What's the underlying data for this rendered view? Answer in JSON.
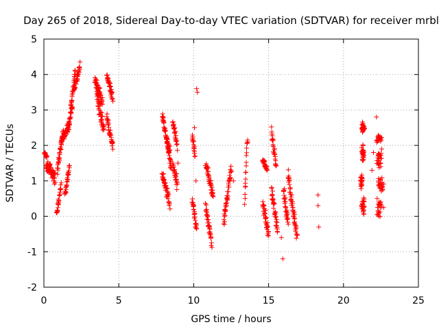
{
  "chart_data": {
    "type": "scatter",
    "title": "Day 265 of 2018, Sidereal Day-to-day VTEC variation (SDTVAR) for receiver mrbl",
    "xlabel": "GPS time / hours",
    "ylabel": "SDTVAR / TECUs",
    "xlim": [
      0,
      25
    ],
    "ylim": [
      -2,
      5
    ],
    "xticks": [
      "0",
      "5",
      "10",
      "15",
      "20",
      "25"
    ],
    "yticks": [
      "-2",
      "-1",
      "0",
      "1",
      "2",
      "3",
      "4",
      "5"
    ],
    "grid": true,
    "marker": "+",
    "color": "#ff0000",
    "series": [
      {
        "name": "SDTVAR",
        "segments": [
          {
            "t0": 0.0,
            "t1": 0.2,
            "v0": 1.85,
            "v1": 1.65,
            "noise": 0.1
          },
          {
            "t0": 0.15,
            "t1": 0.75,
            "v0": 1.5,
            "v1": 1.05,
            "noise": 0.25
          },
          {
            "t0": 0.85,
            "t1": 1.15,
            "v0": 0.05,
            "v1": 0.9,
            "noise": 0.12
          },
          {
            "t0": 0.9,
            "t1": 1.3,
            "v0": 1.3,
            "v1": 2.4,
            "noise": 0.2
          },
          {
            "t0": 1.2,
            "t1": 1.7,
            "v0": 2.1,
            "v1": 2.6,
            "noise": 0.2
          },
          {
            "t0": 1.4,
            "t1": 1.7,
            "v0": 0.6,
            "v1": 1.4,
            "noise": 0.15
          },
          {
            "t0": 1.6,
            "t1": 1.9,
            "v0": 2.5,
            "v1": 3.1,
            "noise": 0.15
          },
          {
            "t0": 1.8,
            "t1": 2.1,
            "v0": 3.1,
            "v1": 4.1,
            "noise": 0.2
          },
          {
            "t0": 2.0,
            "t1": 2.4,
            "v0": 3.5,
            "v1": 4.25,
            "noise": 0.2
          },
          {
            "t0": 3.4,
            "t1": 3.9,
            "v0": 3.9,
            "v1": 3.2,
            "noise": 0.25
          },
          {
            "t0": 3.5,
            "t1": 4.0,
            "v0": 3.5,
            "v1": 2.4,
            "noise": 0.3
          },
          {
            "t0": 4.2,
            "t1": 4.6,
            "v0": 4.0,
            "v1": 3.3,
            "noise": 0.2
          },
          {
            "t0": 4.2,
            "t1": 4.6,
            "v0": 2.8,
            "v1": 2.0,
            "noise": 0.25
          },
          {
            "t0": 7.9,
            "t1": 8.4,
            "v0": 2.8,
            "v1": 1.8,
            "noise": 0.2
          },
          {
            "t0": 7.9,
            "t1": 8.4,
            "v0": 1.2,
            "v1": 0.35,
            "noise": 0.2
          },
          {
            "t0": 8.2,
            "t1": 8.5,
            "v0": 2.1,
            "v1": 1.4,
            "noise": 0.25
          },
          {
            "t0": 8.6,
            "t1": 8.9,
            "v0": 2.7,
            "v1": 2.0,
            "noise": 0.2
          },
          {
            "t0": 8.6,
            "t1": 8.9,
            "v0": 1.5,
            "v1": 0.9,
            "noise": 0.2
          },
          {
            "t0": 9.9,
            "t1": 10.1,
            "v0": 2.3,
            "v1": 1.7,
            "noise": 0.15
          },
          {
            "t0": 9.9,
            "t1": 10.2,
            "v0": 0.5,
            "v1": -0.4,
            "noise": 0.2
          },
          {
            "t0": 10.8,
            "t1": 11.3,
            "v0": 1.5,
            "v1": 0.6,
            "noise": 0.25
          },
          {
            "t0": 10.8,
            "t1": 11.2,
            "v0": 0.3,
            "v1": -0.8,
            "noise": 0.25
          },
          {
            "t0": 12.0,
            "t1": 12.5,
            "v0": -0.2,
            "v1": 1.4,
            "noise": 0.25
          },
          {
            "t0": 13.4,
            "t1": 13.6,
            "v0": 0.4,
            "v1": 2.3,
            "noise": 0.2
          },
          {
            "t0": 14.6,
            "t1": 14.9,
            "v0": 1.6,
            "v1": 1.3,
            "noise": 0.1
          },
          {
            "t0": 14.6,
            "t1": 15.0,
            "v0": 0.4,
            "v1": -0.5,
            "noise": 0.25
          },
          {
            "t0": 15.2,
            "t1": 15.5,
            "v0": 2.35,
            "v1": 1.4,
            "noise": 0.2
          },
          {
            "t0": 15.2,
            "t1": 15.6,
            "v0": 0.8,
            "v1": -0.4,
            "noise": 0.25
          },
          {
            "t0": 16.0,
            "t1": 16.3,
            "v0": 0.7,
            "v1": -0.2,
            "noise": 0.2
          },
          {
            "t0": 16.3,
            "t1": 16.9,
            "v0": 1.1,
            "v1": -0.6,
            "noise": 0.25
          }
        ],
        "points": [
          [
            15.95,
            -1.2
          ],
          [
            15.85,
            -0.6
          ],
          [
            18.3,
            0.6
          ],
          [
            18.3,
            0.3
          ],
          [
            18.35,
            -0.3
          ],
          [
            10.2,
            3.6
          ],
          [
            10.25,
            3.5
          ],
          [
            10.05,
            2.5
          ],
          [
            10.15,
            1.0
          ],
          [
            12.65,
            1.0
          ],
          [
            16.0,
            0.7
          ],
          [
            22.2,
            2.8
          ],
          [
            22.0,
            1.8
          ],
          [
            21.9,
            1.3
          ],
          [
            22.55,
            1.9
          ],
          [
            8.95,
            1.5
          ]
        ],
        "clusters": [
          {
            "t": 21.3,
            "v": 2.5,
            "spread_t": 0.15,
            "spread_v": 0.2
          },
          {
            "t": 21.3,
            "v": 1.8,
            "spread_t": 0.15,
            "spread_v": 0.3
          },
          {
            "t": 21.2,
            "v": 1.0,
            "spread_t": 0.1,
            "spread_v": 0.3
          },
          {
            "t": 21.3,
            "v": 0.3,
            "spread_t": 0.15,
            "spread_v": 0.35
          },
          {
            "t": 22.4,
            "v": 2.2,
            "spread_t": 0.25,
            "spread_v": 0.15
          },
          {
            "t": 22.4,
            "v": 1.6,
            "spread_t": 0.25,
            "spread_v": 0.3
          },
          {
            "t": 22.5,
            "v": 0.9,
            "spread_t": 0.3,
            "spread_v": 0.35
          },
          {
            "t": 22.4,
            "v": 0.2,
            "spread_t": 0.3,
            "spread_v": 0.35
          }
        ]
      }
    ]
  }
}
